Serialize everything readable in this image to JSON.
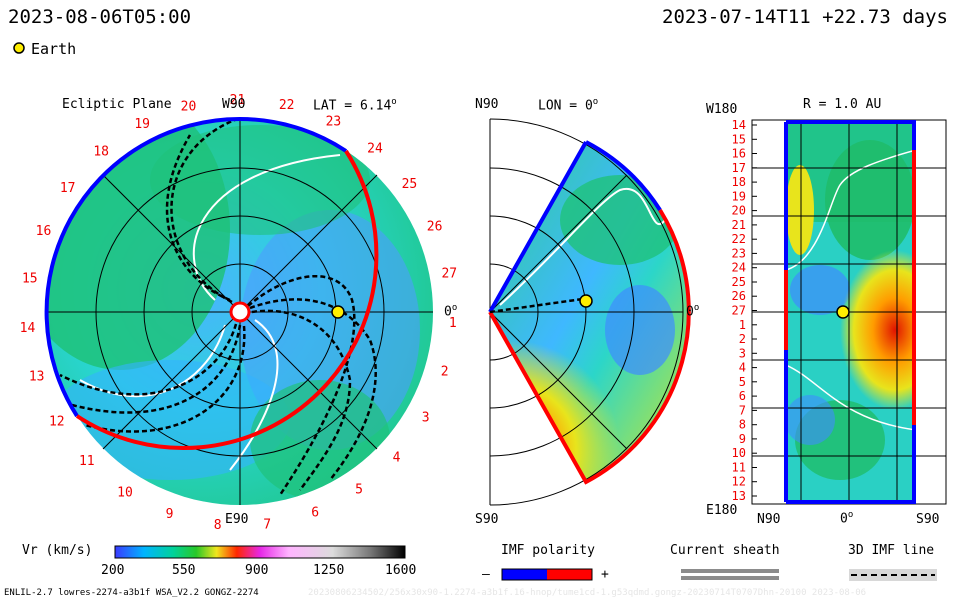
{
  "header": {
    "left_date": "2023-08-06T05:00",
    "right_date": "2023-07-14T11 +22.73 days",
    "earth_legend": "Earth"
  },
  "panels": {
    "ecliptic": {
      "title": "Ecliptic Plane",
      "top": "W90",
      "lat": "LAT = 6.14",
      "lat_sup": "o",
      "right": "0",
      "right_sup": "o",
      "bottom": "E90"
    },
    "meridional": {
      "top": "N90",
      "lon": "LON = 0",
      "lon_sup": "o",
      "right": "0",
      "right_sup": "o",
      "bottom": "S90"
    },
    "radial": {
      "top_left": "W180",
      "title": "R = 1.0 AU",
      "bottom_left": "E180",
      "x_left": "N90",
      "x_mid": "0",
      "x_mid_sup": "o",
      "x_right": "S90"
    }
  },
  "carrington_ticks": [
    "1",
    "2",
    "3",
    "4",
    "5",
    "6",
    "7",
    "8",
    "9",
    "10",
    "11",
    "12",
    "13",
    "14",
    "15",
    "16",
    "17",
    "18",
    "19",
    "20",
    "21",
    "22",
    "23",
    "24",
    "25",
    "26",
    "27"
  ],
  "radial_ticks": [
    "14",
    "15",
    "16",
    "17",
    "18",
    "19",
    "20",
    "21",
    "22",
    "23",
    "24",
    "25",
    "26",
    "27",
    "1",
    "2",
    "3",
    "4",
    "5",
    "6",
    "7",
    "8",
    "9",
    "10",
    "11",
    "12",
    "13"
  ],
  "legend": {
    "vr_label": "Vr (km/s)",
    "vr_ticks": [
      "200",
      "550",
      "900",
      "1250",
      "1600"
    ],
    "imf_label": "IMF polarity",
    "imf_minus": "–",
    "imf_plus": "+",
    "sheath_label": "Current sheath",
    "imf3d_label": "3D IMF line"
  },
  "footer": {
    "left": "ENLIL-2.7 lowres-2274-a3b1f WSA_V2.2 GONGZ-2274",
    "faint": "20230806234502/256x30x90-1.2274-a3b1f.16-hnop/tume1cd-1.g53qdmd.gongz-20230714T0707Dhn-20100  2023-08-06"
  },
  "colors": {
    "imf_negative": "#0000ff",
    "imf_positive": "#ff0000",
    "earth": "#ffee00",
    "text_red": "#ee0000"
  },
  "chart_data": {
    "type": "heatmap",
    "title": "Vr (km/s)",
    "colorbar_range": [
      200,
      1600
    ],
    "earth_position": {
      "lat_deg": 6.14,
      "lon_deg": 0,
      "r_au": 1.0
    },
    "carrington_longitude_labels": [
      "1",
      "2",
      "3",
      "4",
      "5",
      "6",
      "7",
      "8",
      "9",
      "10",
      "11",
      "12",
      "13",
      "14",
      "15",
      "16",
      "17",
      "18",
      "19",
      "20",
      "21",
      "22",
      "23",
      "24",
      "25",
      "26",
      "27"
    ]
  }
}
